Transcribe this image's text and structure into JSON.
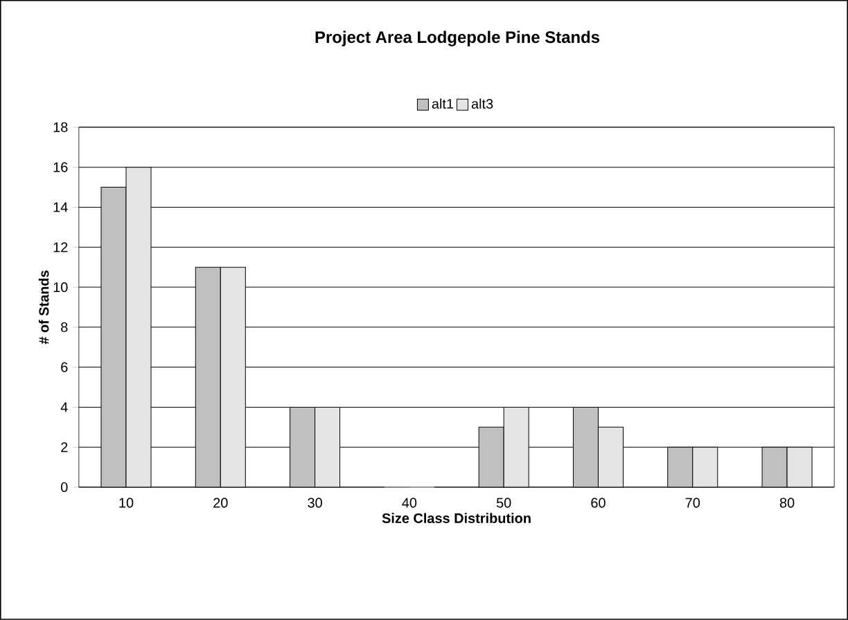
{
  "chart_data": {
    "type": "bar",
    "title": "Project Area Lodgepole Pine Stands",
    "xlabel": "Size Class Distribution",
    "ylabel": "# of Stands",
    "categories": [
      "10",
      "20",
      "30",
      "40",
      "50",
      "60",
      "70",
      "80"
    ],
    "series": [
      {
        "name": "alt1",
        "color": "#c0c0c0",
        "values": [
          15,
          11,
          4,
          0,
          3,
          4,
          2,
          2
        ]
      },
      {
        "name": "alt3",
        "color": "#e4e4e4",
        "values": [
          16,
          11,
          4,
          0,
          4,
          3,
          2,
          2
        ]
      }
    ],
    "ylim": [
      0,
      18
    ],
    "yticks": [
      0,
      2,
      4,
      6,
      8,
      10,
      12,
      14,
      16,
      18
    ],
    "grid": "y",
    "legend": "top"
  }
}
